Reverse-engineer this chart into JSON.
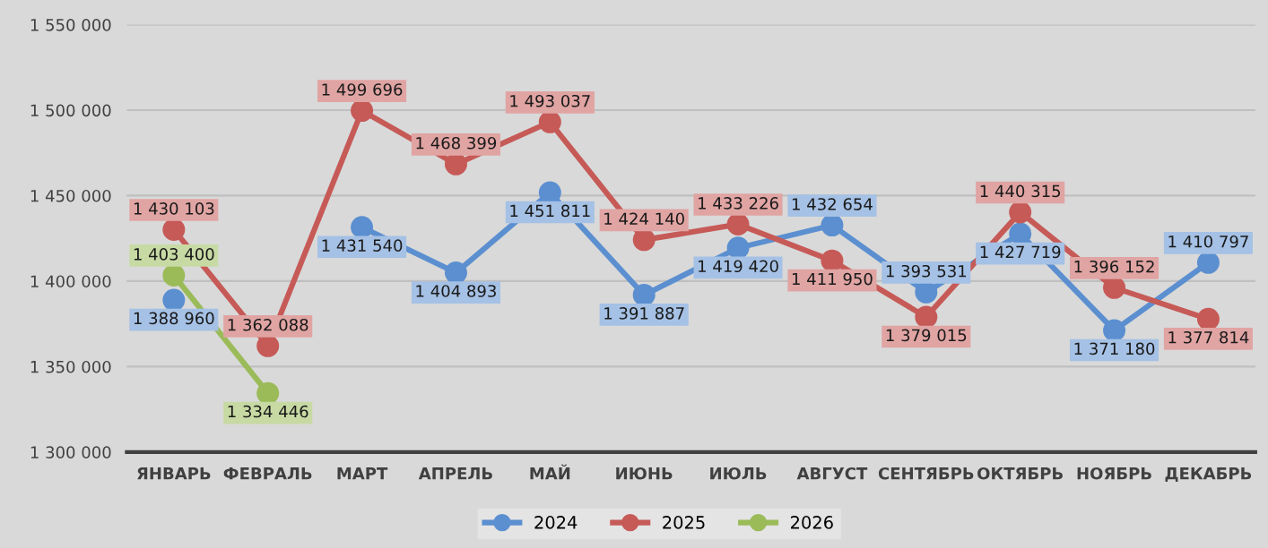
{
  "chart_data": {
    "type": "line",
    "categories": [
      "ЯНВАРЬ",
      "ФЕВРАЛЬ",
      "МАРТ",
      "АПРЕЛЬ",
      "МАЙ",
      "ИЮНЬ",
      "ИЮЛЬ",
      "АВГУСТ",
      "СЕНТЯБРЬ",
      "ОКТЯБРЬ",
      "НОЯБРЬ",
      "ДЕКАБРЬ"
    ],
    "series": [
      {
        "name": "2024",
        "color": "#5b8fd0",
        "values": [
          1388960,
          null,
          1431540,
          1404893,
          1451811,
          1391887,
          1419420,
          1432654,
          1393531,
          1427719,
          1371180,
          1410797
        ],
        "value_labels": [
          "1 388 960",
          null,
          "1 431 540",
          "1 404 893",
          "1 451 811",
          "1 391 887",
          "1 419 420",
          "1 432 654",
          "1 393 531",
          "1 427 719",
          "1 371 180",
          "1 410 797"
        ]
      },
      {
        "name": "2025",
        "color": "#c65a57",
        "values": [
          1430103,
          1362088,
          1499696,
          1468399,
          1493037,
          1424140,
          1433226,
          1411950,
          1379015,
          1440315,
          1396152,
          1377814
        ],
        "value_labels": [
          "1 430 103",
          "1 362 088",
          "1 499 696",
          "1 468 399",
          "1 493 037",
          "1 424 140",
          "1 433 226",
          "1 411 950",
          "1 379 015",
          "1 440 315",
          "1 396 152",
          "1 377 814"
        ]
      },
      {
        "name": "2026",
        "color": "#9bbb59",
        "values": [
          1403400,
          1334446,
          null,
          null,
          null,
          null,
          null,
          null,
          null,
          null,
          null,
          null
        ],
        "value_labels": [
          "1 403 400",
          "1 334 446",
          null,
          null,
          null,
          null,
          null,
          null,
          null,
          null,
          null,
          null
        ]
      }
    ],
    "ylim": [
      1300000,
      1550000
    ],
    "yticks": [
      {
        "value": 1300000,
        "label": "1 300 000"
      },
      {
        "value": 1350000,
        "label": "1 350 000"
      },
      {
        "value": 1400000,
        "label": "1 400 000"
      },
      {
        "value": 1450000,
        "label": "1 450 000"
      },
      {
        "value": 1500000,
        "label": "1 500 000"
      },
      {
        "value": 1550000,
        "label": "1 550 000"
      }
    ],
    "grid": "y",
    "legend": "bottom",
    "marker": "circle",
    "line_style": "solid"
  }
}
